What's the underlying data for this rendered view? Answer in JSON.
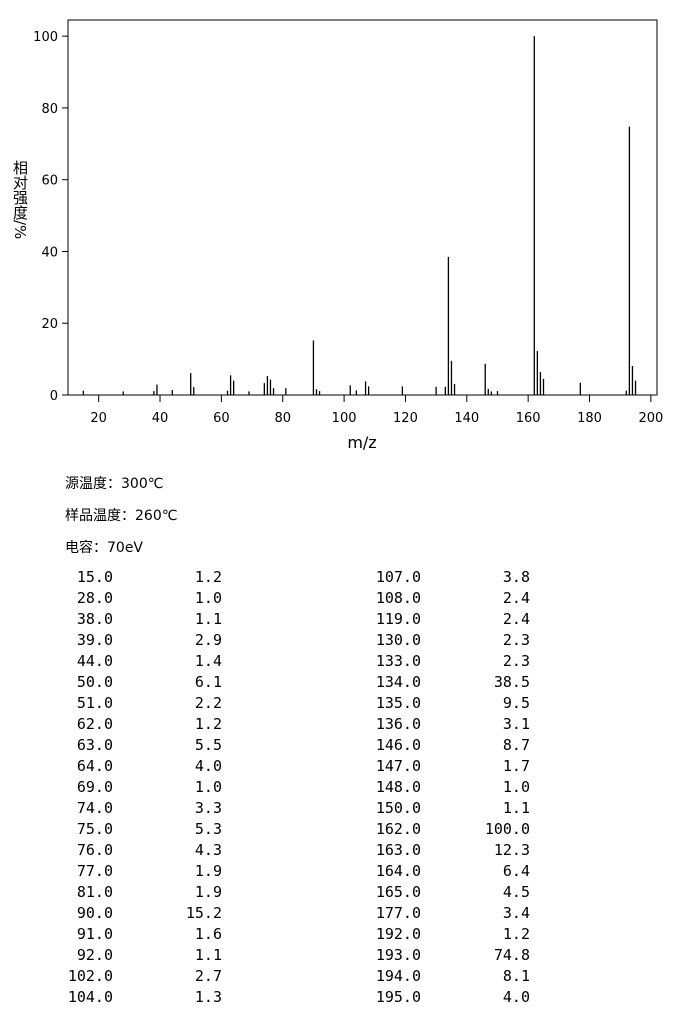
{
  "chart_data": {
    "type": "bar",
    "x_label": "m/z",
    "y_label": "相对强度/%",
    "x": [
      15,
      28,
      38,
      39,
      44,
      50,
      51,
      62,
      63,
      64,
      69,
      74,
      75,
      76,
      77,
      81,
      90,
      91,
      92,
      102,
      104,
      107,
      108,
      119,
      130,
      133,
      134,
      135,
      136,
      146,
      147,
      148,
      150,
      162,
      163,
      164,
      165,
      177,
      192,
      193,
      194,
      195
    ],
    "x_labels": [
      "15.0",
      "28.0",
      "38.0",
      "39.0",
      "44.0",
      "50.0",
      "51.0",
      "62.0",
      "63.0",
      "64.0",
      "69.0",
      "74.0",
      "75.0",
      "76.0",
      "77.0",
      "81.0",
      "90.0",
      "91.0",
      "92.0",
      "102.0",
      "104.0",
      "107.0",
      "108.0",
      "119.0",
      "130.0",
      "133.0",
      "134.0",
      "135.0",
      "136.0",
      "146.0",
      "147.0",
      "148.0",
      "150.0",
      "162.0",
      "163.0",
      "164.0",
      "165.0",
      "177.0",
      "192.0",
      "193.0",
      "194.0",
      "195.0"
    ],
    "values": [
      1.2,
      1.0,
      1.1,
      2.9,
      1.4,
      6.1,
      2.2,
      1.2,
      5.5,
      4.0,
      1.0,
      3.3,
      5.3,
      4.3,
      1.9,
      1.9,
      15.2,
      1.6,
      1.1,
      2.7,
      1.3,
      3.8,
      2.4,
      2.4,
      2.3,
      2.3,
      38.5,
      9.5,
      3.1,
      8.7,
      1.7,
      1.0,
      1.1,
      100.0,
      12.3,
      6.4,
      4.5,
      3.4,
      1.2,
      74.8,
      8.1,
      4.0
    ],
    "value_labels": [
      "1.2",
      "1.0",
      "1.1",
      "2.9",
      "1.4",
      "6.1",
      "2.2",
      "1.2",
      "5.5",
      "4.0",
      "1.0",
      "3.3",
      "5.3",
      "4.3",
      "1.9",
      "1.9",
      "15.2",
      "1.6",
      "1.1",
      "2.7",
      "1.3",
      "3.8",
      "2.4",
      "2.4",
      "2.3",
      "2.3",
      "38.5",
      "9.5",
      "3.1",
      "8.7",
      "1.7",
      "1.0",
      "1.1",
      "100.0",
      "12.3",
      "6.4",
      "4.5",
      "3.4",
      "1.2",
      "74.8",
      "8.1",
      "4.0"
    ],
    "color": "#000000",
    "xlim": [
      10,
      202
    ],
    "xticks": [
      20,
      40,
      60,
      80,
      100,
      120,
      140,
      160,
      180,
      200
    ],
    "ylim": [
      0,
      104.5
    ],
    "yticks": [
      0,
      20,
      40,
      60,
      80,
      100
    ]
  },
  "conditions": [
    "源温度：300℃",
    "样品温度：260℃",
    "电容：70eV"
  ]
}
